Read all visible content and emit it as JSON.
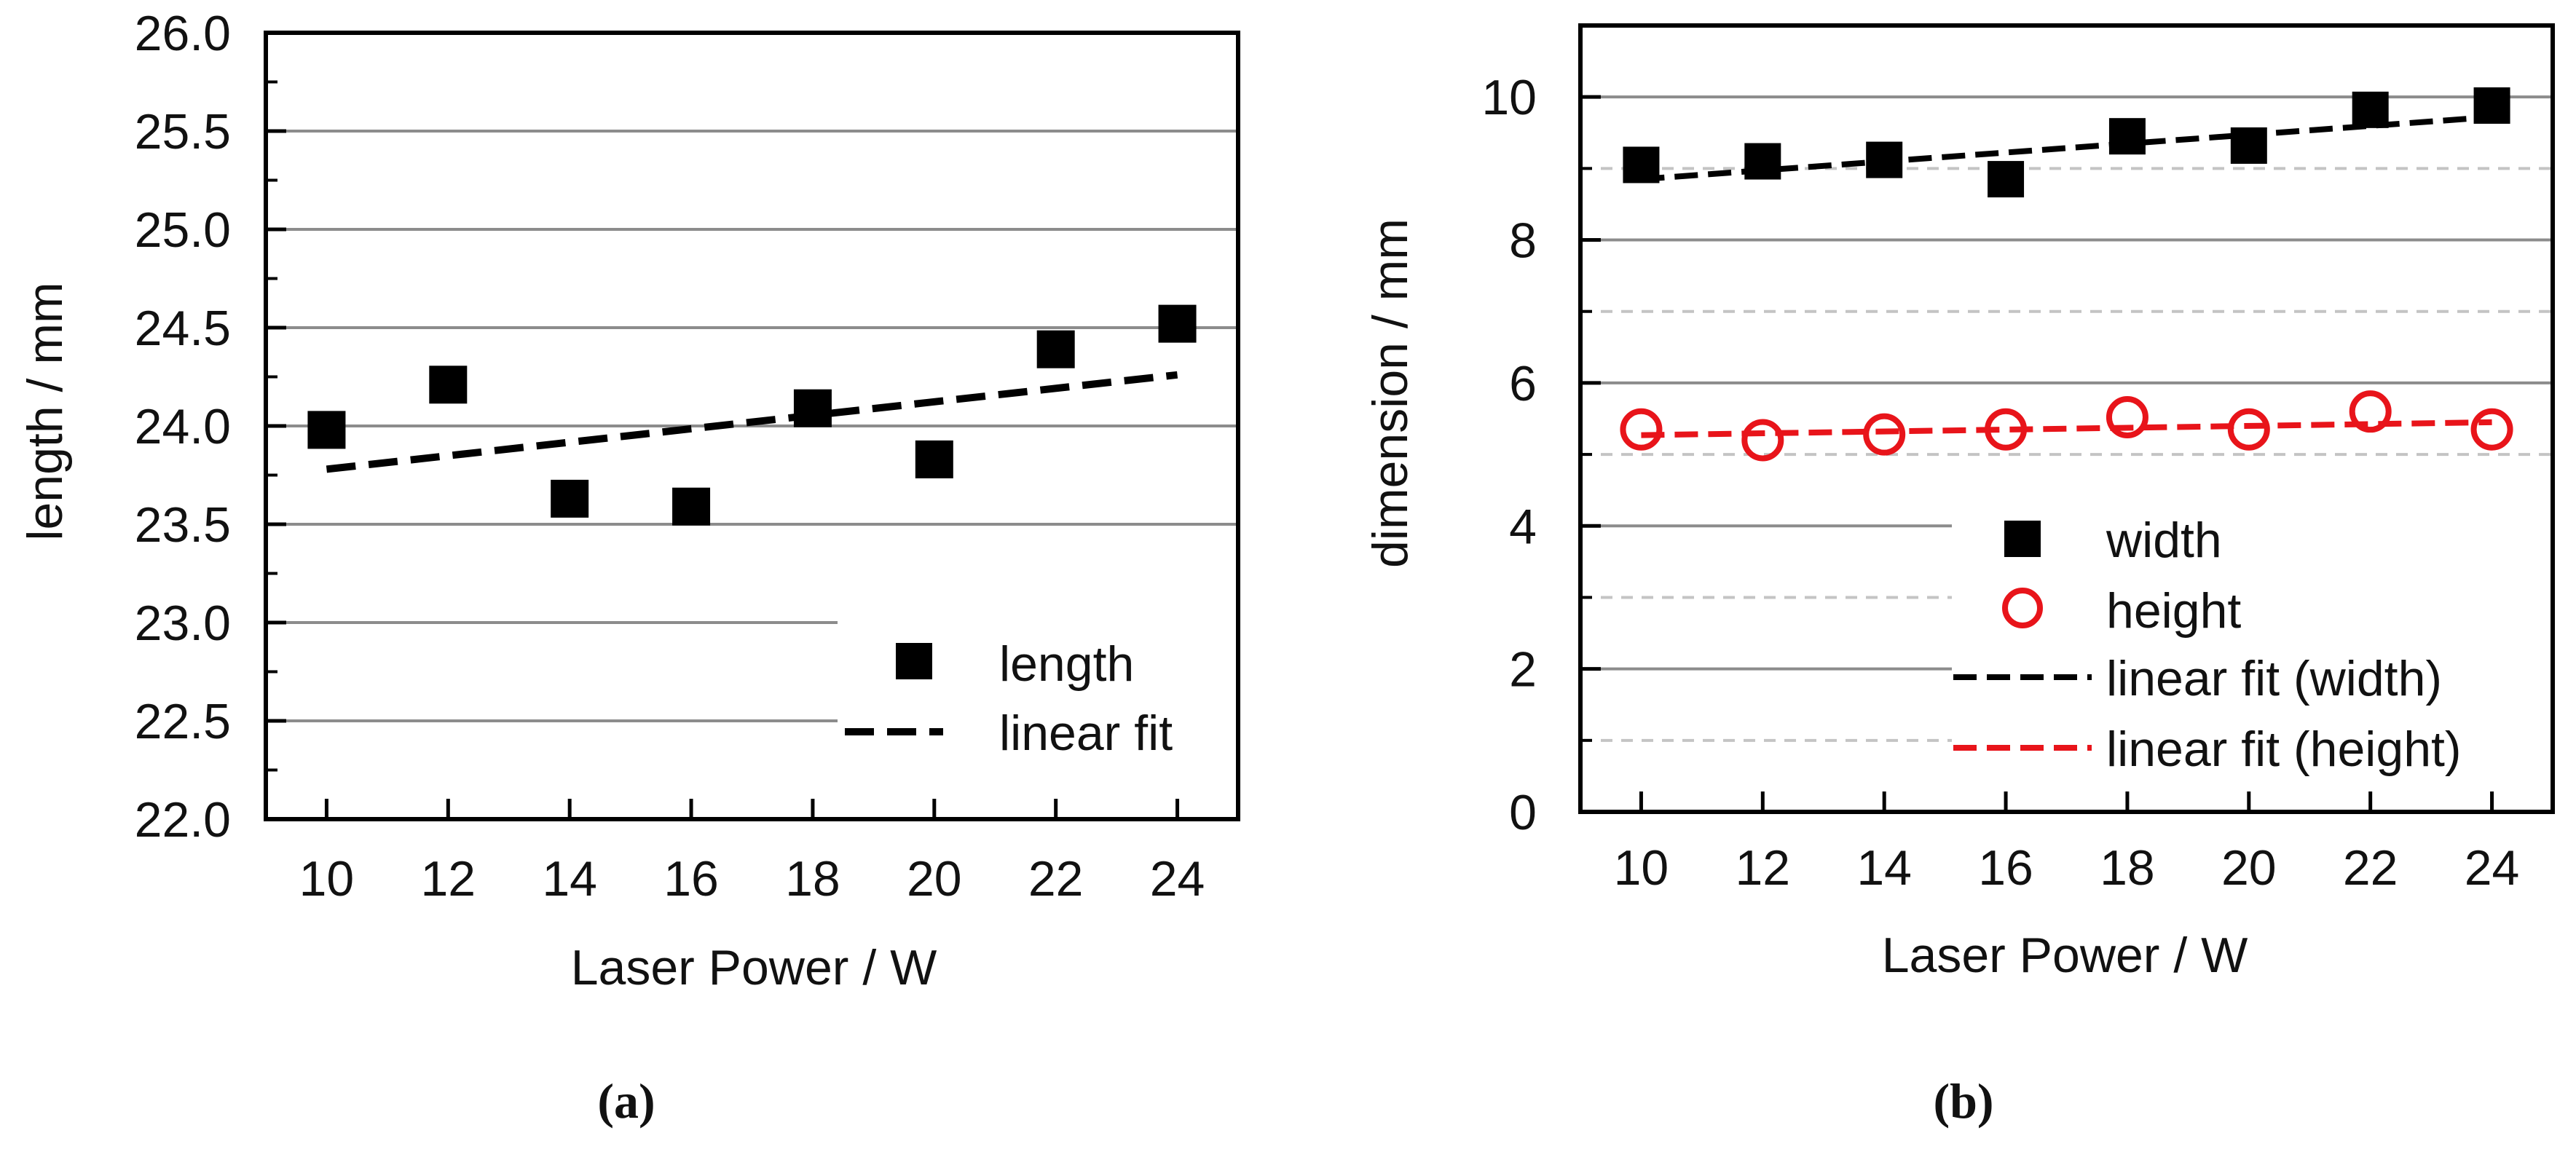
{
  "chart_data": [
    {
      "type": "scatter",
      "panel_label": "(a)",
      "xlabel": "Laser Power / W",
      "ylabel": "length / mm",
      "xlim": [
        9,
        25
      ],
      "ylim": [
        22.0,
        26.0
      ],
      "xticks": [
        "10",
        "12",
        "14",
        "16",
        "18",
        "20",
        "22",
        "24"
      ],
      "yticks": [
        "22.0",
        "22.5",
        "23.0",
        "23.5",
        "24.0",
        "24.5",
        "25.0",
        "25.5",
        "26.0"
      ],
      "grid": true,
      "legend_position": "bottom-right",
      "series": [
        {
          "name": "length",
          "marker": "filled-square",
          "color": "#000000",
          "x": [
            10,
            12,
            14,
            16,
            18,
            20,
            22,
            24
          ],
          "y": [
            23.98,
            24.21,
            23.63,
            23.59,
            24.09,
            23.83,
            24.39,
            24.52
          ]
        },
        {
          "name": "linear fit",
          "style": "dashed-line",
          "color": "#000000",
          "x": [
            10,
            24
          ],
          "y": [
            23.78,
            24.26
          ]
        }
      ]
    },
    {
      "type": "scatter",
      "panel_label": "(b)",
      "xlabel": "Laser Power / W",
      "ylabel": "dimension / mm",
      "xlim": [
        9,
        25
      ],
      "ylim": [
        0,
        11
      ],
      "xticks": [
        "10",
        "12",
        "14",
        "16",
        "18",
        "20",
        "22",
        "24"
      ],
      "yticks": [
        "0",
        "2",
        "4",
        "6",
        "8",
        "10"
      ],
      "grid": true,
      "legend_position": "center-right",
      "series": [
        {
          "name": "width",
          "marker": "filled-square",
          "color": "#000000",
          "x": [
            10,
            12,
            14,
            16,
            18,
            20,
            22,
            24
          ],
          "y": [
            9.05,
            9.1,
            9.12,
            8.85,
            9.45,
            9.32,
            9.82,
            9.88
          ]
        },
        {
          "name": "height",
          "marker": "open-circle",
          "color": "#e8141a",
          "x": [
            10,
            12,
            14,
            16,
            18,
            20,
            22,
            24
          ],
          "y": [
            5.35,
            5.2,
            5.28,
            5.35,
            5.52,
            5.35,
            5.6,
            5.35
          ]
        },
        {
          "name": "linear fit (width)",
          "style": "dashed-line",
          "color": "#000000",
          "x": [
            10,
            24
          ],
          "y": [
            8.85,
            9.72
          ]
        },
        {
          "name": "linear fit (height)",
          "style": "dashed-line",
          "color": "#e8141a",
          "x": [
            10,
            24
          ],
          "y": [
            5.27,
            5.45
          ]
        }
      ]
    }
  ]
}
